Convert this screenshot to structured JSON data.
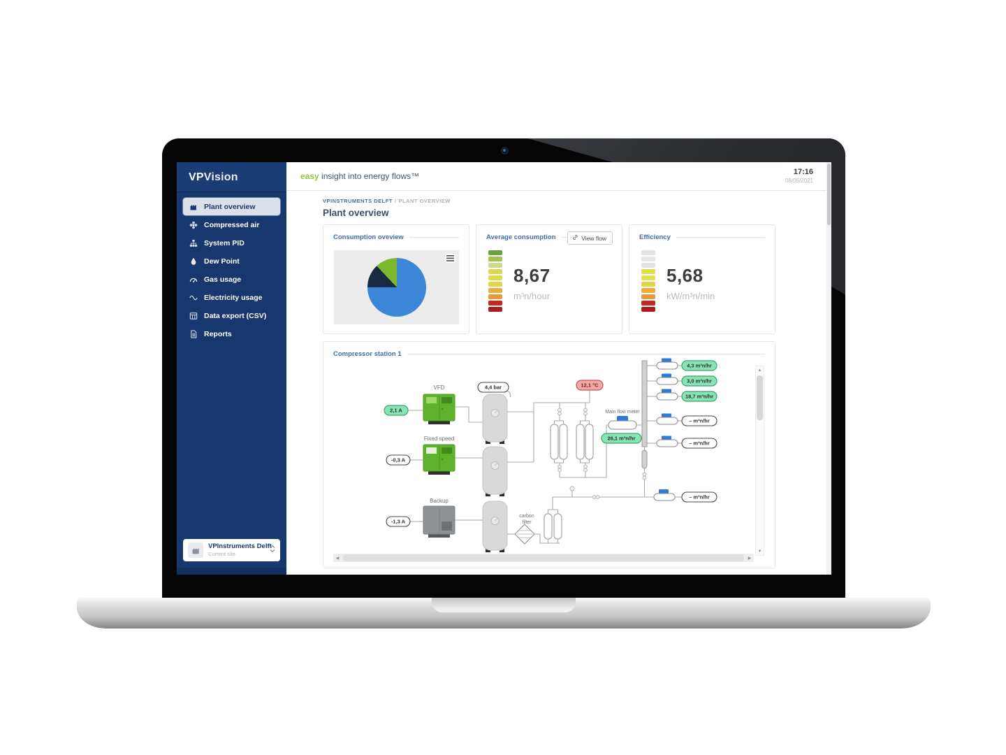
{
  "window": {
    "tagline": {
      "highlight": "easy",
      "rest": " insight into energy flows™"
    },
    "clock": {
      "time": "17:16",
      "date": "08/05/2021"
    }
  },
  "sidebar": {
    "logo": {
      "bold": "VP",
      "light": "Vision"
    },
    "items": [
      {
        "label": "Plant overview",
        "icon": "factory-icon",
        "active": true
      },
      {
        "label": "Compressed air",
        "icon": "fan-icon",
        "active": false
      },
      {
        "label": "System PID",
        "icon": "sitemap-icon",
        "active": false
      },
      {
        "label": "Dew Point",
        "icon": "droplet-icon",
        "active": false
      },
      {
        "label": "Gas usage",
        "icon": "gauge-icon",
        "active": false
      },
      {
        "label": "Electricity usage",
        "icon": "wave-icon",
        "active": false
      },
      {
        "label": "Data export (CSV)",
        "icon": "table-icon",
        "active": false
      },
      {
        "label": "Reports",
        "icon": "report-icon",
        "active": false
      }
    ],
    "site_selector": {
      "name": "VPInstruments Delft",
      "subtitle": "Current site"
    }
  },
  "main": {
    "breadcrumb": {
      "site": "VPINSTRUMENTS DELFT",
      "separator": "/",
      "page": "PLANT OVERVIEW"
    },
    "page_title": "Plant overview"
  },
  "cards": {
    "consumption": {
      "title": "Consumption oveview"
    },
    "average": {
      "title": "Average consumption",
      "view_flow_button": "View flow",
      "value": "8,67",
      "unit": "m³n/hour",
      "gauge_colors": [
        "#69a23c",
        "#a5c34c",
        "#ccd893",
        "#dfd947",
        "#e1dc4e",
        "#e3d54b",
        "#e9ad3e",
        "#e59b39",
        "#c3271f",
        "#ad1a17"
      ]
    },
    "efficiency": {
      "title": "Efficiency",
      "value": "5,68",
      "unit": "kW/m³n/min",
      "gauge_colors": [
        "#e3e3e3",
        "#e7e7e7",
        "#e3e3e3",
        "#e2dd4d",
        "#e4df55",
        "#e3d54b",
        "#e9ad3e",
        "#e59b39",
        "#c3271f",
        "#ad1a17"
      ]
    }
  },
  "chart_data": {
    "type": "pie",
    "title": "Consumption oveview",
    "legend": false,
    "start_angle_deg": 0,
    "direction": "clockwise",
    "slices": [
      {
        "name": "blue",
        "value": 75,
        "color": "#3c86d8"
      },
      {
        "name": "dark-navy",
        "value": 13,
        "color": "#182b42"
      },
      {
        "name": "green",
        "value": 12,
        "color": "#7cb82e"
      }
    ]
  },
  "station": {
    "title": "Compressor station 1",
    "compressors": [
      {
        "label": "VFD",
        "current": "2,1 A",
        "pill_style": "green"
      },
      {
        "label": "Fixed speed",
        "current": "-0,3 A",
        "pill_style": "white"
      },
      {
        "label": "Backup",
        "current": "-1,3 A",
        "pill_style": "white"
      }
    ],
    "sensors": {
      "pressure": "4,4 bar",
      "temperature": "12,1 °C",
      "main_flow_label": "Main flow meter",
      "main_flow": "26,1 m³n/hr",
      "carbon_filter_1": "carbon",
      "carbon_filter_2": "filter"
    },
    "branch_flows": [
      {
        "text": "4,3 m³n/hr",
        "style": "green"
      },
      {
        "text": "3,0 m³n/hr",
        "style": "green"
      },
      {
        "text": "18,7 m³n/hr",
        "style": "green"
      },
      {
        "text": "– m³n/hr",
        "style": "white"
      },
      {
        "text": "– m³n/hr",
        "style": "white"
      },
      {
        "text": "– m³n/hr",
        "style": "white"
      }
    ]
  }
}
